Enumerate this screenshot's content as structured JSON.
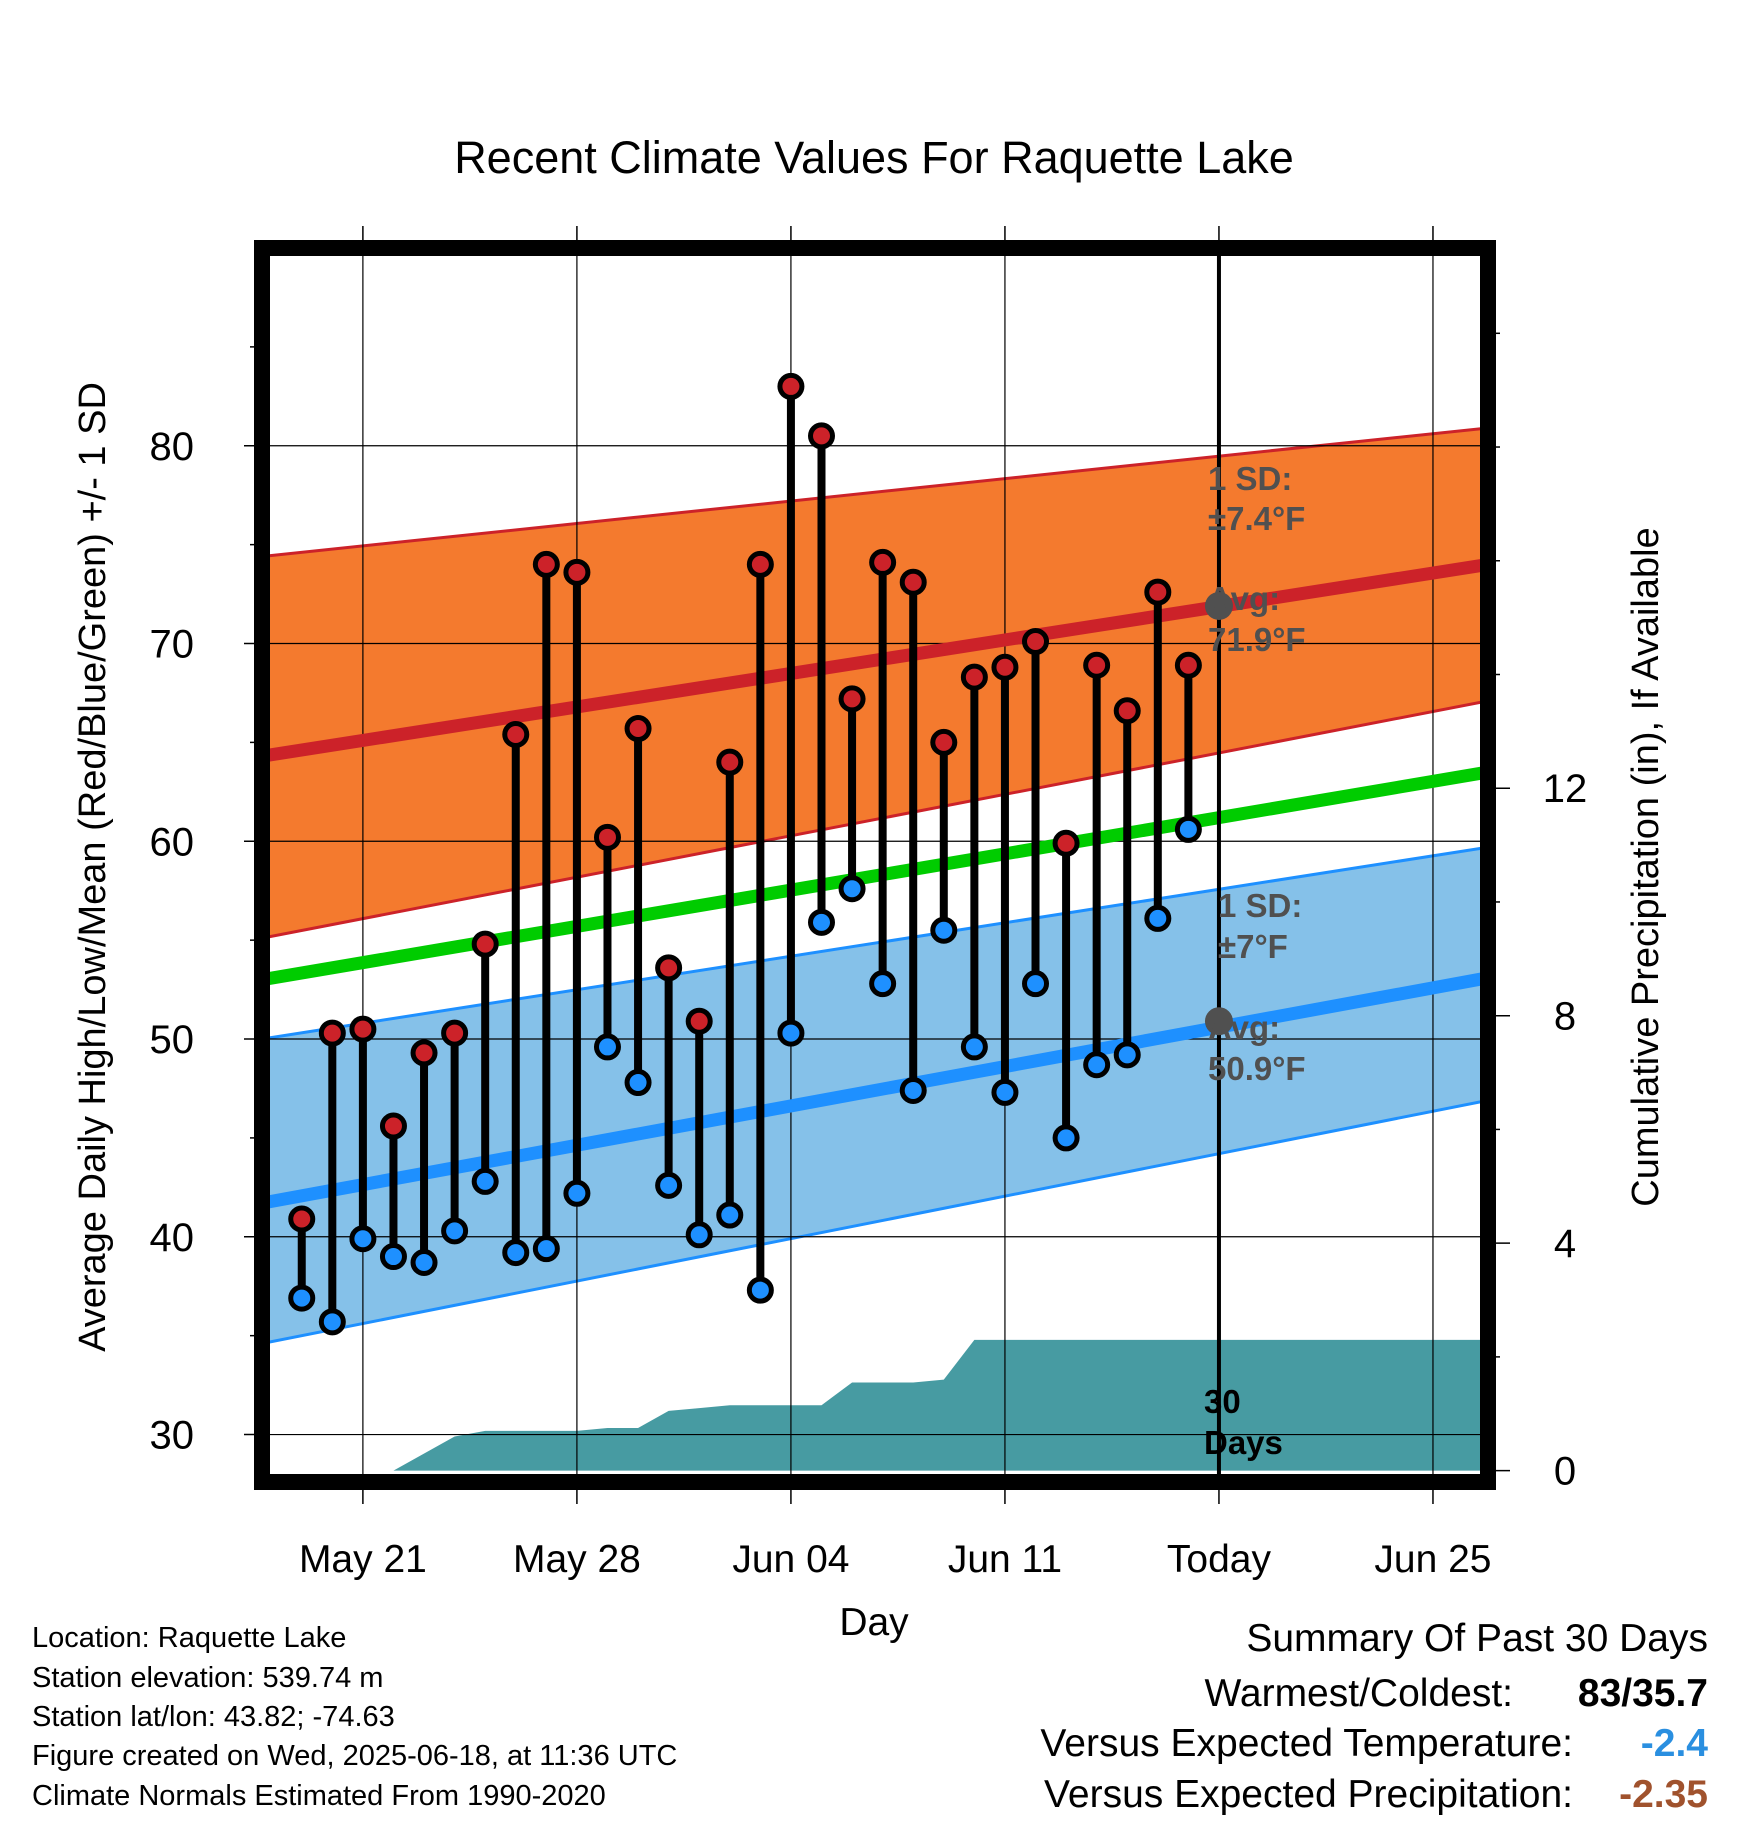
{
  "title": "Recent Climate Values For Raquette Lake",
  "x_axis_label": "Day",
  "y_axis_left_label": "Average Daily High/Low/Mean (Red/Blue/Green) +/- 1 SD",
  "y_axis_right_label": "Cumulative Precipitation (in), If Available",
  "annotations": {
    "high_sd_line1": "1 SD:",
    "high_sd_line2": "±7.4°F",
    "high_avg_line1": "Avg:",
    "high_avg_line2": "71.9°F",
    "low_sd_line1": "1 SD:",
    "low_sd_line2": "±7°F",
    "low_avg_line1": "Avg:",
    "low_avg_line2": "50.9°F",
    "precip_line1": "30",
    "precip_line2": "Days"
  },
  "info": {
    "location": "Location: Raquette Lake",
    "elevation": "Station elevation: 539.74 m",
    "latlon": "Station lat/lon: 43.82; -74.63",
    "created": "Figure created on Wed, 2025-06-18, at 11:36 UTC",
    "normals": "Climate Normals Estimated From 1990-2020"
  },
  "summary": {
    "title": "Summary Of Past 30 Days",
    "warmest_label": "Warmest/Coldest:",
    "warmest_value": "83/35.7",
    "temp_label": "Versus Expected Temperature:",
    "temp_value": "-2.4",
    "precip_label": "Versus Expected Precipitation:",
    "precip_value": "-2.35"
  },
  "colors": {
    "high": "#cc2229",
    "low": "#1e90ff",
    "mean": "#00cc00",
    "high_band": "#f47a2e",
    "low_band": "#85c1e9",
    "precip": "#479ba2",
    "annotation": "#505050",
    "temp_value": "#2a8fe0",
    "precip_value": "#a0522d"
  },
  "chart_data": {
    "type": "line",
    "x_tick_labels": [
      "May 21",
      "May 28",
      "Jun 04",
      "Jun 11",
      "Today",
      "Jun 25"
    ],
    "x_ticks": [
      2,
      9,
      16,
      23,
      30,
      37
    ],
    "xlim": [
      -1.3,
      38.8
    ],
    "ylim": [
      27.6,
      90
    ],
    "y_ticks": [
      30,
      40,
      50,
      60,
      70,
      80
    ],
    "y2_ticks": [
      0,
      4,
      8,
      12
    ],
    "y2lim": [
      -0.2,
      21.5
    ],
    "daily": {
      "day": [
        0,
        1,
        2,
        3,
        4,
        5,
        6,
        7,
        8,
        9,
        10,
        11,
        12,
        13,
        14,
        15,
        16,
        17,
        18,
        19,
        20,
        21,
        22,
        23,
        24,
        25,
        26,
        27,
        28,
        29
      ],
      "high": [
        40.9,
        50.3,
        50.5,
        45.6,
        49.3,
        50.3,
        54.8,
        65.4,
        74.0,
        73.6,
        60.2,
        65.7,
        53.6,
        50.9,
        64.0,
        74.0,
        83.0,
        80.5,
        67.2,
        74.1,
        73.1,
        65.0,
        68.3,
        68.8,
        70.1,
        59.9,
        68.9,
        66.6,
        72.6,
        68.9
      ],
      "low": [
        36.9,
        35.7,
        39.9,
        39.0,
        38.7,
        40.3,
        42.8,
        39.2,
        39.4,
        42.2,
        49.6,
        47.8,
        42.6,
        40.1,
        41.1,
        37.3,
        50.3,
        55.9,
        57.6,
        52.8,
        47.4,
        55.5,
        49.6,
        47.3,
        52.8,
        45.0,
        48.7,
        49.2,
        56.1,
        60.6
      ]
    },
    "normals": {
      "day": [
        -1.3,
        38.8
      ],
      "high_mean": [
        64.3,
        74.0
      ],
      "high_upper": [
        74.4,
        80.9
      ],
      "high_lower": [
        55.1,
        67.1
      ],
      "mean": [
        53.0,
        63.5
      ],
      "low_mean": [
        41.7,
        53.1
      ],
      "low_upper": [
        50.0,
        59.7
      ],
      "low_lower": [
        34.6,
        46.9
      ]
    },
    "today_high_avg": 71.9,
    "today_low_avg": 50.9,
    "precip": {
      "day": [
        -1.3,
        1.0,
        3.0,
        5.0,
        6.0,
        9.0,
        10.0,
        11.0,
        12.0,
        13.0,
        14.0,
        15.0,
        17.0,
        18.0,
        19.0,
        20.0,
        21.0,
        22.0,
        23.0,
        38.8
      ],
      "value": [
        0.0,
        0.0,
        0.0,
        0.6,
        0.7,
        0.7,
        0.75,
        0.75,
        1.05,
        1.1,
        1.15,
        1.15,
        1.15,
        1.55,
        1.55,
        1.55,
        1.6,
        2.3,
        2.3,
        2.3
      ]
    }
  }
}
